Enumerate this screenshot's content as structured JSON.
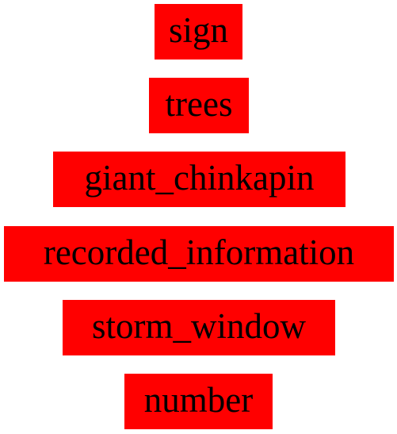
{
  "labels": [
    {
      "text": "sign"
    },
    {
      "text": "trees"
    },
    {
      "text": "giant_chinkapin"
    },
    {
      "text": "recorded_information"
    },
    {
      "text": "storm_window"
    },
    {
      "text": "number"
    }
  ],
  "colors": {
    "box": "#ff0000",
    "text": "#000000",
    "background": "#ffffff"
  }
}
